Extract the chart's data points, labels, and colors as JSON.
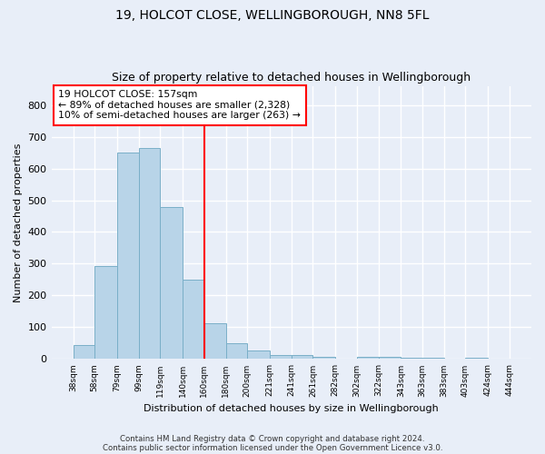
{
  "title1": "19, HOLCOT CLOSE, WELLINGBOROUGH, NN8 5FL",
  "title2": "Size of property relative to detached houses in Wellingborough",
  "xlabel": "Distribution of detached houses by size in Wellingborough",
  "ylabel": "Number of detached properties",
  "footer1": "Contains HM Land Registry data © Crown copyright and database right 2024.",
  "footer2": "Contains public sector information licensed under the Open Government Licence v3.0.",
  "annotation_line1": "19 HOLCOT CLOSE: 157sqm",
  "annotation_line2": "← 89% of detached houses are smaller (2,328)",
  "annotation_line3": "10% of semi-detached houses are larger (263) →",
  "bar_color": "#b8d4e8",
  "bar_edge_color": "#7aafc8",
  "vline_color": "red",
  "vline_x": 160,
  "bin_edges": [
    38,
    58,
    79,
    99,
    119,
    140,
    160,
    180,
    200,
    221,
    241,
    261,
    282,
    302,
    322,
    343,
    363,
    383,
    403,
    424,
    444
  ],
  "bar_heights": [
    45,
    293,
    651,
    663,
    480,
    251,
    113,
    50,
    27,
    14,
    14,
    8,
    0,
    8,
    8,
    5,
    5,
    0,
    5,
    0
  ],
  "ylim": [
    0,
    860
  ],
  "yticks": [
    0,
    100,
    200,
    300,
    400,
    500,
    600,
    700,
    800
  ],
  "background_color": "#e8eef8",
  "plot_bg_color": "#e8eef8",
  "grid_color": "white",
  "title1_fontsize": 10,
  "title2_fontsize": 9,
  "annotation_box_color": "white",
  "annotation_box_edge": "red"
}
